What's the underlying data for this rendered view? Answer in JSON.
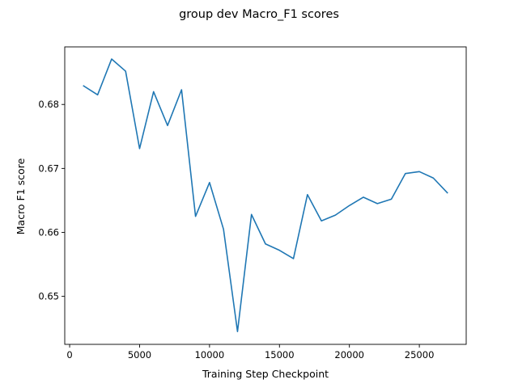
{
  "chart_data": {
    "type": "line",
    "title": "group dev Macro_F1 scores",
    "xlabel": "Training Step Checkpoint",
    "ylabel": "Macro F1 score",
    "xlim": [
      -350,
      28350
    ],
    "ylim": [
      0.6425,
      0.689
    ],
    "xticks": [
      0,
      5000,
      10000,
      15000,
      20000,
      25000
    ],
    "yticks": [
      0.65,
      0.66,
      0.67,
      0.68
    ],
    "grid": false,
    "legend": "none",
    "series": [
      {
        "color": "#1f77b4",
        "x": [
          1000,
          2000,
          3000,
          4000,
          5000,
          6000,
          7000,
          8000,
          9000,
          10000,
          11000,
          12000,
          13000,
          14000,
          15000,
          16000,
          17000,
          18000,
          19000,
          20000,
          21000,
          22000,
          23000,
          24000,
          25000,
          26000,
          27000
        ],
        "y": [
          0.6829,
          0.6815,
          0.6871,
          0.6852,
          0.6731,
          0.682,
          0.6767,
          0.6823,
          0.6625,
          0.6678,
          0.6605,
          0.6445,
          0.6628,
          0.6582,
          0.6572,
          0.6559,
          0.6659,
          0.6618,
          0.6627,
          0.6642,
          0.6655,
          0.6645,
          0.6652,
          0.6692,
          0.6695,
          0.6685,
          0.6662
        ]
      }
    ]
  }
}
